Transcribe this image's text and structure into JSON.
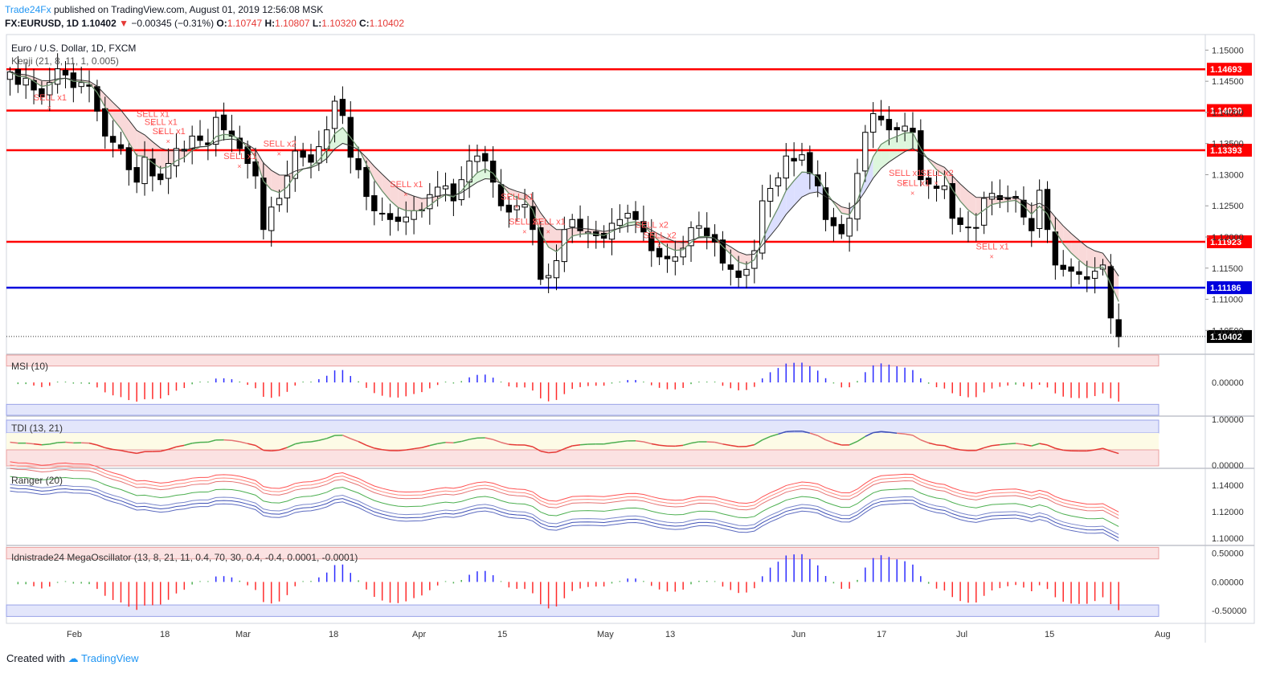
{
  "header": {
    "brand": "Trade24Fx",
    "published": "published on TradingView.com, August 01, 2019 12:56:08 MSK",
    "symbol": "FX:EURUSD, 1D",
    "last": "1.10402",
    "change": "−0.00345 (−0.31%)",
    "o_label": "O:",
    "o": "1.10747",
    "h_label": "H:",
    "h": "1.10807",
    "l_label": "L:",
    "l": "1.10320",
    "c_label": "C:",
    "c": "1.10402"
  },
  "footer": {
    "created": "Created with",
    "brand": "TradingView"
  },
  "colors": {
    "bull": "#ffffff",
    "bear": "#000000",
    "line_red": "#ff0000",
    "line_blue": "#0000dd",
    "sell_text": "#ff5252",
    "up_bar": "#2c2cff",
    "down_bar": "#ff2c2c",
    "neutral_bar": "#4caf50"
  },
  "chart_data": [
    {
      "type": "candlestick",
      "title": "Euro / U.S. Dollar, 1D, FXCM",
      "indicator": "Kenji (21, 8, 11, 1, 0.005)",
      "ylim": [
        1.1013,
        1.1525
      ],
      "yticks": [
        "1.15000",
        "1.14500",
        "1.14000",
        "1.13500",
        "1.13000",
        "1.12500",
        "1.12000",
        "1.11500",
        "1.11000",
        "1.10500"
      ],
      "xticks": [
        "Feb",
        "18",
        "Mar",
        "18",
        "Apr",
        "15",
        "May",
        "13",
        "Jun",
        "17",
        "Jul",
        "15",
        "Aug"
      ],
      "levels": [
        {
          "value": 1.14693,
          "label": "1.14693",
          "color": "red"
        },
        {
          "value": 1.1403,
          "label": "1.14030",
          "color": "red"
        },
        {
          "value": 1.13393,
          "label": "1.13393",
          "color": "red"
        },
        {
          "value": 1.11923,
          "label": "1.11923",
          "color": "red"
        },
        {
          "value": 1.11186,
          "label": "1.11186",
          "color": "blue"
        }
      ],
      "last_price": {
        "value": 1.10402,
        "label": "1.10402"
      },
      "signals": [
        {
          "text": "SELL x1",
          "x": 5,
          "price": 1.1419
        },
        {
          "text": "SELL x1",
          "x": 18,
          "price": 1.1393
        },
        {
          "text": "SELL x1",
          "x": 19,
          "price": 1.138
        },
        {
          "text": "SELL x1",
          "x": 20,
          "price": 1.1365
        },
        {
          "text": "SELL x1",
          "x": 29,
          "price": 1.1325
        },
        {
          "text": "SELL x2",
          "x": 34,
          "price": 1.1345
        },
        {
          "text": "SELL x1",
          "x": 50,
          "price": 1.128
        },
        {
          "text": "SELL x1",
          "x": 64,
          "price": 1.126
        },
        {
          "text": "SELL x1",
          "x": 65,
          "price": 1.122
        },
        {
          "text": "SELL x1",
          "x": 68,
          "price": 1.122
        },
        {
          "text": "SELL x2",
          "x": 81,
          "price": 1.1215
        },
        {
          "text": "SELL x2",
          "x": 82,
          "price": 1.1198
        },
        {
          "text": "SELL x1",
          "x": 113,
          "price": 1.1298
        },
        {
          "text": "SELL x1",
          "x": 114,
          "price": 1.1282
        },
        {
          "text": "SELL x2",
          "x": 117,
          "price": 1.1298
        },
        {
          "text": "SELL x1",
          "x": 124,
          "price": 1.118
        }
      ],
      "closes": [
        1.1465,
        1.1445,
        1.1455,
        1.1436,
        1.1425,
        1.1448,
        1.147,
        1.146,
        1.144,
        1.1448,
        1.1442,
        1.1402,
        1.1362,
        1.1352,
        1.1342,
        1.1308,
        1.1288,
        1.1328,
        1.1298,
        1.1292,
        1.1318,
        1.1342,
        1.1338,
        1.1362,
        1.1355,
        1.1348,
        1.1392,
        1.1372,
        1.1362,
        1.1342,
        1.1318,
        1.1298,
        1.1212,
        1.1248,
        1.1262,
        1.1298,
        1.1338,
        1.1328,
        1.132,
        1.1345,
        1.1372,
        1.1418,
        1.1395,
        1.1328,
        1.1308,
        1.1265,
        1.1242,
        1.1238,
        1.1228,
        1.1225,
        1.1232,
        1.1242,
        1.1242,
        1.1268,
        1.128,
        1.1282,
        1.1258,
        1.1292,
        1.1322,
        1.133,
        1.1322,
        1.1288,
        1.125,
        1.124,
        1.125,
        1.1252,
        1.1212,
        1.1132,
        1.1138,
        1.1162,
        1.1212,
        1.1228,
        1.121,
        1.1208,
        1.1202,
        1.1198,
        1.1222,
        1.1228,
        1.1238,
        1.1228,
        1.1208,
        1.1178,
        1.1168,
        1.1165,
        1.1168,
        1.1182,
        1.1215,
        1.1218,
        1.1202,
        1.1192,
        1.1158,
        1.1148,
        1.1135,
        1.1148,
        1.1178,
        1.1258,
        1.1278,
        1.1295,
        1.133,
        1.1322,
        1.1332,
        1.1302,
        1.1282,
        1.1228,
        1.1218,
        1.1205,
        1.123,
        1.1302,
        1.1368,
        1.1398,
        1.1388,
        1.1372,
        1.1372,
        1.1378,
        1.1368,
        1.1292,
        1.1285,
        1.1278,
        1.1282,
        1.123,
        1.122,
        1.1215,
        1.1215,
        1.1262,
        1.127,
        1.126,
        1.1262,
        1.1262,
        1.1232,
        1.121,
        1.1275,
        1.1212,
        1.1155,
        1.1148,
        1.1145,
        1.114,
        1.1132,
        1.1145,
        1.1155,
        1.107,
        1.104
      ]
    },
    {
      "type": "bar",
      "title": "MSI (10)",
      "ylim": [
        -0.06,
        0.05
      ],
      "yticks": [
        "0.00000"
      ],
      "bands": {
        "upper": [
          0.03,
          0.05
        ],
        "lower": [
          -0.06,
          -0.04
        ]
      }
    },
    {
      "type": "line",
      "title": "TDI (13, 21)",
      "ylim": [
        -0.05,
        1.05
      ],
      "yticks": [
        "1.00000",
        "0.00000"
      ]
    },
    {
      "type": "line",
      "title": "Ranger (20)",
      "ylim": [
        1.095,
        1.152
      ],
      "yticks": [
        "1.14000",
        "1.12000",
        "1.10000"
      ]
    },
    {
      "type": "bar",
      "title": "Idnistrade24 MegaOscillator (13, 8, 21, 11, 0.4, 70, 30, 0.4, -0.4, 0.0001, -0.0001)",
      "ylim": [
        -0.72,
        0.62
      ],
      "yticks": [
        "0.50000",
        "0.00000",
        "-0.50000"
      ]
    }
  ]
}
